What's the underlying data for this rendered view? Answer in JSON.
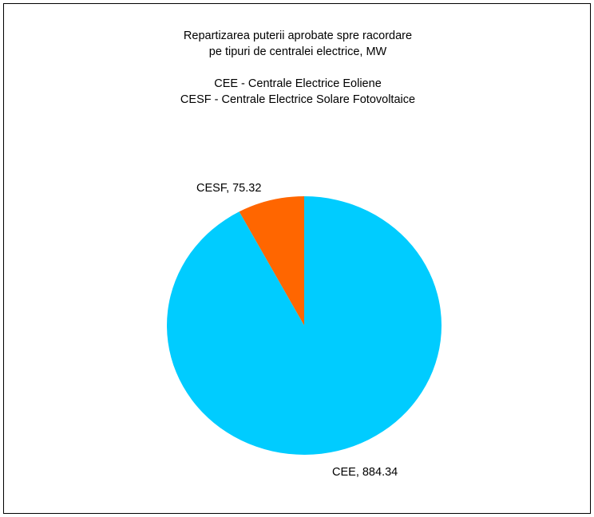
{
  "chart_data": {
    "type": "pie",
    "title_lines": [
      "Repartizarea puterii aprobate spre racordare",
      "pe tipuri de centralei electrice, MW"
    ],
    "note_lines": [
      "CEE - Centrale Electrice Eoliene",
      "CESF - Centrale Electrice Solare Fotovoltaice"
    ],
    "slices": [
      {
        "name": "CESF",
        "value": 75.32,
        "label": "CESF, 75.32",
        "color": "#FF6600"
      },
      {
        "name": "CEE",
        "value": 884.34,
        "label": "CEE, 884.34",
        "color": "#00CCFF"
      }
    ],
    "start_angle_deg": 0,
    "direction": "counterclockwise",
    "legend": "none"
  }
}
